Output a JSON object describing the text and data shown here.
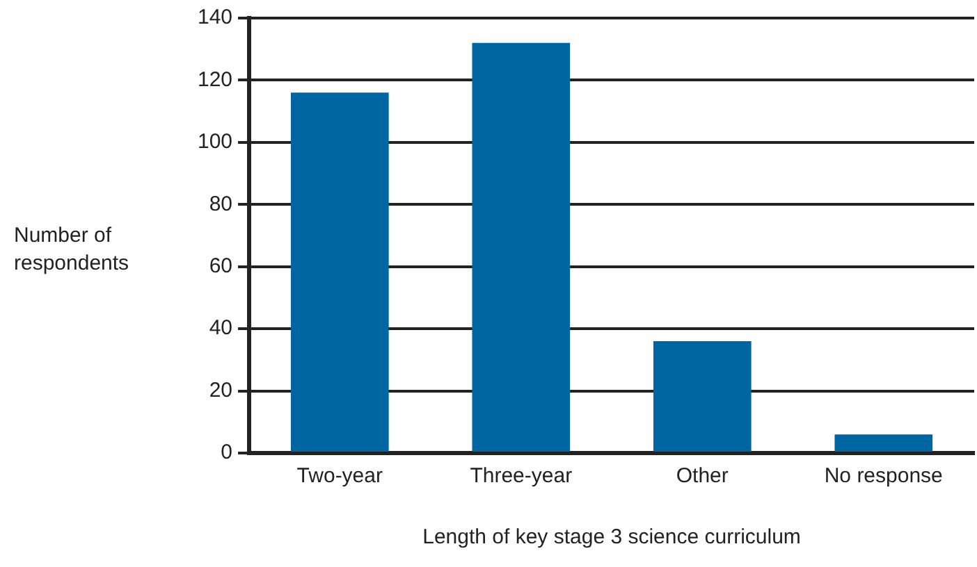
{
  "chart_data": {
    "type": "bar",
    "xlabel": "Length of key stage 3 science curriculum",
    "ylabel": "Number of respondents",
    "categories": [
      "Two-year",
      "Three-year",
      "Other",
      "No response"
    ],
    "values": [
      116,
      132,
      36,
      6
    ],
    "color": "#0066a1",
    "ylim": [
      0,
      140
    ],
    "yticks": [
      0,
      20,
      40,
      60,
      80,
      100,
      120,
      140
    ],
    "grid": "y"
  }
}
